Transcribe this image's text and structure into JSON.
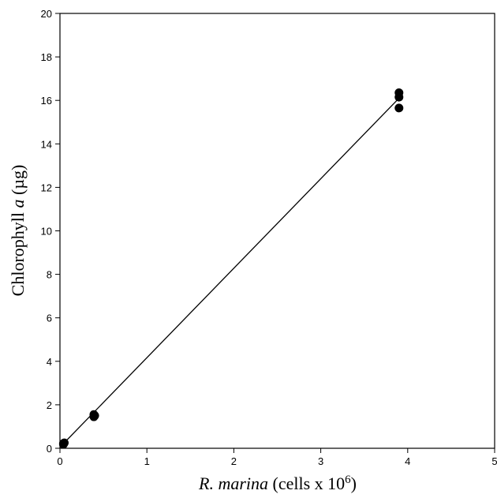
{
  "chart_data": {
    "type": "scatter",
    "xlabel": {
      "italic": "R. marina",
      "text": " (cells x 10",
      "superscript": "6",
      "close": ")"
    },
    "ylabel": {
      "text": "Chlorophyll ",
      "italic": "a",
      "unit": " (µg)"
    },
    "xlim": [
      0,
      5
    ],
    "ylim": [
      0,
      20
    ],
    "xticks": [
      0,
      1,
      2,
      3,
      4,
      5
    ],
    "yticks": [
      0,
      2,
      4,
      6,
      8,
      10,
      12,
      14,
      16,
      18,
      20
    ],
    "grid": false,
    "points": [
      {
        "x": 0.04,
        "y": 0.18
      },
      {
        "x": 0.04,
        "y": 0.22
      },
      {
        "x": 0.05,
        "y": 0.25
      },
      {
        "x": 0.39,
        "y": 1.45
      },
      {
        "x": 0.39,
        "y": 1.55
      },
      {
        "x": 0.4,
        "y": 1.5
      },
      {
        "x": 3.9,
        "y": 15.65
      },
      {
        "x": 3.9,
        "y": 16.15
      },
      {
        "x": 3.9,
        "y": 16.35
      }
    ],
    "fit_line": {
      "x": [
        0,
        3.9
      ],
      "y": [
        0.05,
        16.1
      ]
    }
  }
}
